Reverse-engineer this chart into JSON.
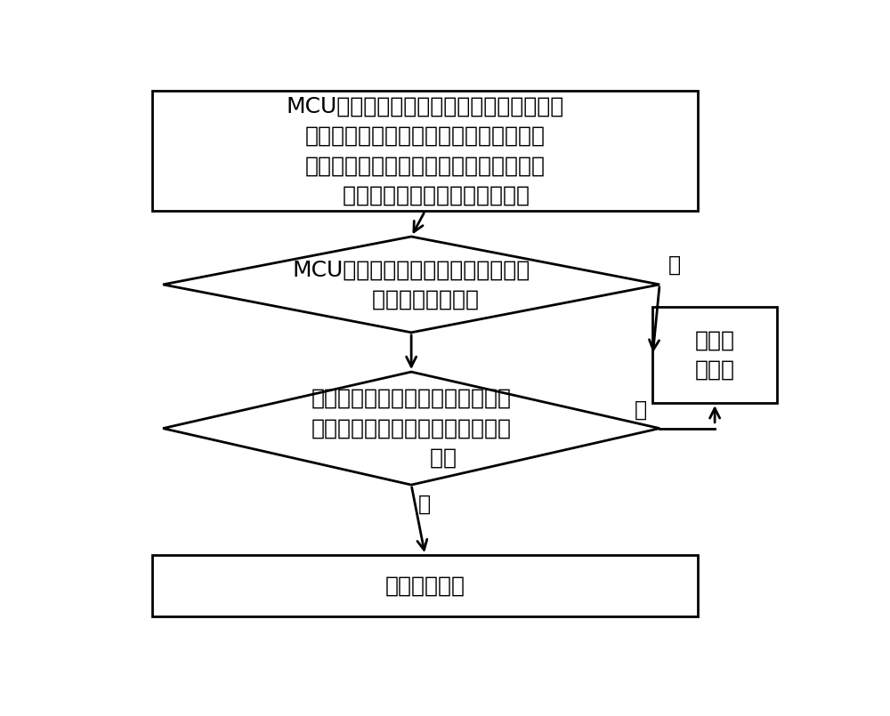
{
  "bg_color": "#ffffff",
  "box_color": "#ffffff",
  "border_color": "#000000",
  "text_color": "#000000",
  "box1_text": "MCU设定一最大限制功率以及一最大温度差\n，并通过充电桩控制器实时获取充电桩的\n当前工作功率，通过温度传感器实时获取\n   进风口的温度以及出风口的温度",
  "diamond1_text": "MCU判断所述当前工作功率是否大于\n    等于最大限制功率",
  "diamond2_text": "判断所述进风口的温度与出风口的\n温度的绝对差是否大于等于最大温\n         度差",
  "box2_text": "启动第\n一风机",
  "box3_text": "关闭第一风机",
  "yes_label": "是",
  "no_label": "否",
  "font_size": 18,
  "lw": 2.0
}
